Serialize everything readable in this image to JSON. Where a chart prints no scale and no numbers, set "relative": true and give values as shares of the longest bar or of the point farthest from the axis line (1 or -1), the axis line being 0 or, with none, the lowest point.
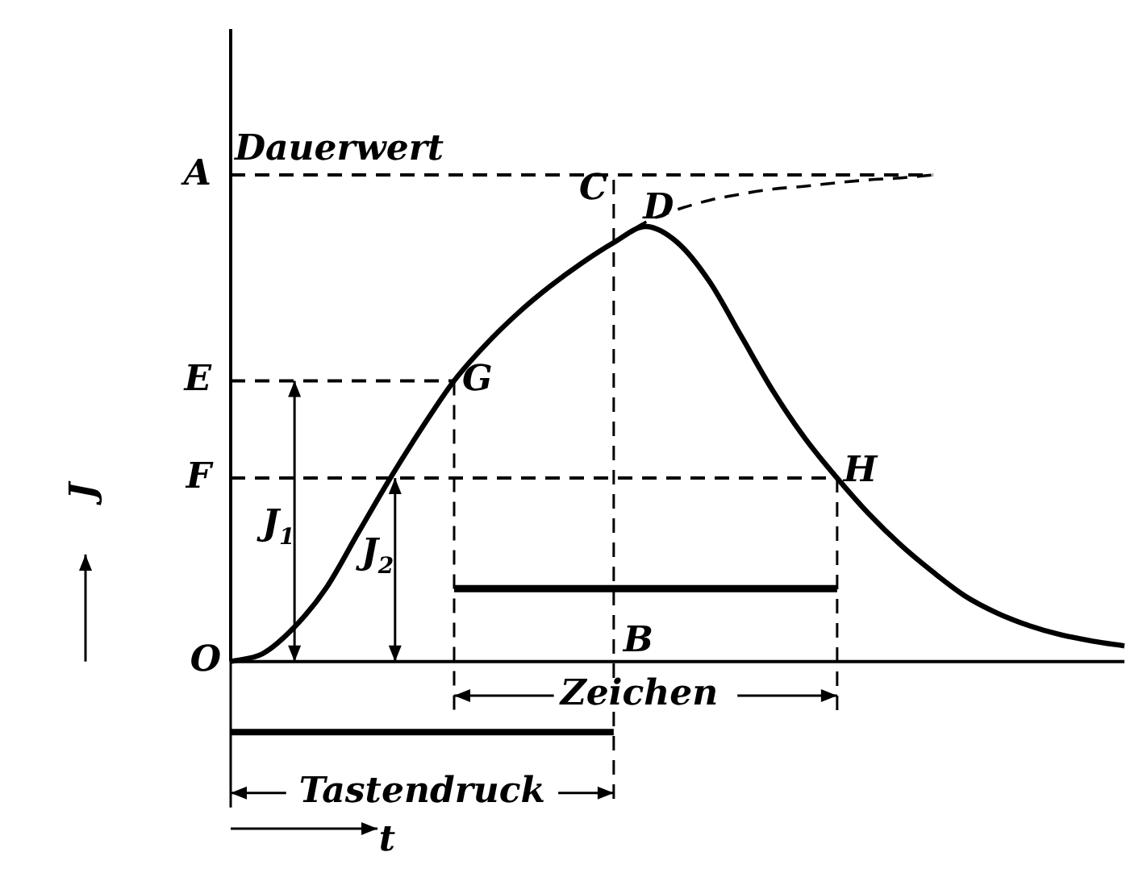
{
  "chart_data": {
    "type": "line",
    "relative": true,
    "xlabel": "t",
    "ylabel": "J",
    "categories": [
      null,
      null,
      null,
      null,
      null,
      null,
      null,
      null,
      null,
      null,
      null,
      null,
      null,
      null,
      null,
      null,
      null,
      null,
      null,
      null,
      null,
      null,
      null,
      null,
      null,
      null,
      null,
      null,
      null
    ],
    "series": [
      {
        "color": "#000000",
        "line_style": "solid",
        "values": [
          0,
          0.016,
          0.071,
          0.152,
          0.265,
          0.377,
          0.481,
          0.577,
          0.652,
          0.716,
          0.771,
          0.819,
          0.861,
          0.894,
          0.861,
          0.781,
          0.668,
          0.555,
          0.458,
          0.377,
          0.303,
          0.239,
          0.184,
          0.135,
          0.1,
          0.074,
          0.055,
          0.042,
          0.032
        ]
      },
      {
        "color": "#000000",
        "line_style": "dashed",
        "values": [
          null,
          null,
          null,
          null,
          null,
          null,
          null,
          null,
          null,
          null,
          null,
          null,
          0.861,
          0.903,
          0.929,
          0.948,
          0.961,
          0.971,
          0.977,
          0.984,
          0.99,
          0.994,
          1.0,
          null,
          null,
          null,
          null,
          null,
          null
        ]
      },
      {
        "color": "#000000",
        "line_style": "solid",
        "values": [
          null,
          null,
          null,
          null,
          null,
          null,
          null,
          0.15,
          0.15,
          0.15,
          0.15,
          0.15,
          0.15,
          0.15,
          0.15,
          0.15,
          0.15,
          0.15,
          0.15,
          0.15,
          null,
          null,
          null,
          null,
          null,
          null,
          null,
          null,
          null
        ]
      }
    ],
    "ref_lines": [
      {
        "axis": "y",
        "value": 1.0,
        "label": "A",
        "line_style": "dashed"
      },
      {
        "axis": "y",
        "value": 0.577,
        "label": "E",
        "line_style": "dashed"
      },
      {
        "axis": "y",
        "value": 0.377,
        "label": "F",
        "line_style": "dashed"
      }
    ],
    "annotations": [
      "Dauerwert",
      "D",
      "O",
      "B",
      "J$_{1}$",
      "J$_{2}$",
      "G",
      "C",
      "H",
      "Zeichen",
      "Tastendruck"
    ],
    "legend": false
  }
}
